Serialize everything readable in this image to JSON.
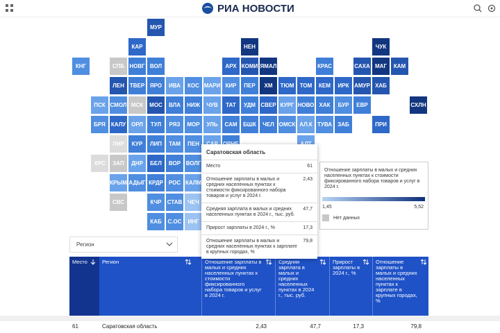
{
  "header": {
    "logo": "РИА НОВОСТИ"
  },
  "tiles": [
    {
      "label": "МУР",
      "color": "#2456b0"
    },
    {
      "label": "КАР",
      "color": "#2e68c8"
    },
    {
      "label": "НЕН",
      "color": "#123680"
    },
    {
      "label": "ЧУК",
      "color": "#123680"
    },
    {
      "label": "КНГ",
      "color": "#4f8ee0"
    },
    {
      "label": "СПБ",
      "color": "#c8c8c8"
    },
    {
      "label": "НОВГ",
      "color": "#3f7fd8"
    },
    {
      "label": "ВОЛ",
      "color": "#3f7fd8"
    },
    {
      "label": "АРХ",
      "color": "#2e68c8"
    },
    {
      "label": "КОМИ",
      "color": "#2456b0"
    },
    {
      "label": "ЯМАЛ",
      "color": "#123680"
    },
    {
      "label": "КРАС",
      "color": "#3f7fd8"
    },
    {
      "label": "САХА",
      "color": "#2456b0"
    },
    {
      "label": "МАГ",
      "color": "#123680"
    },
    {
      "label": "КАМ",
      "color": "#2456b0"
    },
    {
      "label": "ЛЕН",
      "color": "#2456b0"
    },
    {
      "label": "ТВЕР",
      "color": "#3f7fd8"
    },
    {
      "label": "ЯРО",
      "color": "#3f7fd8"
    },
    {
      "label": "ИВА",
      "color": "#6aa3ea"
    },
    {
      "label": "КОС",
      "color": "#4f8ee0"
    },
    {
      "label": "МАРИ",
      "color": "#6aa3ea"
    },
    {
      "label": "КИР",
      "color": "#4f8ee0"
    },
    {
      "label": "ПЕР",
      "color": "#3f7fd8"
    },
    {
      "label": "ХМ",
      "color": "#123680"
    },
    {
      "label": "ТЮМ",
      "color": "#2e68c8"
    },
    {
      "label": "ТОМ",
      "color": "#2e68c8"
    },
    {
      "label": "КЕМ",
      "color": "#2e68c8"
    },
    {
      "label": "ИРК",
      "color": "#2e68c8"
    },
    {
      "label": "АМУР",
      "color": "#2456b0"
    },
    {
      "label": "ХАБ",
      "color": "#2456b0"
    },
    {
      "label": "ПСК",
      "color": "#6aa3ea"
    },
    {
      "label": "СМОЛ",
      "color": "#4f8ee0"
    },
    {
      "label": "МСК",
      "color": "#c8c8c8"
    },
    {
      "label": "МОС",
      "color": "#2456b0"
    },
    {
      "label": "ВЛА",
      "color": "#3f7fd8"
    },
    {
      "label": "НИЖ",
      "color": "#3f7fd8"
    },
    {
      "label": "ЧУВ",
      "color": "#6aa3ea"
    },
    {
      "label": "ТАТ",
      "color": "#2e68c8"
    },
    {
      "label": "УДМ",
      "color": "#3f7fd8"
    },
    {
      "label": "СВЕР",
      "color": "#2e68c8"
    },
    {
      "label": "КУРГ",
      "color": "#6aa3ea"
    },
    {
      "label": "НОВО",
      "color": "#3f7fd8"
    },
    {
      "label": "ХАК",
      "color": "#3f7fd8"
    },
    {
      "label": "БУР",
      "color": "#4f8ee0"
    },
    {
      "label": "ЕВР",
      "color": "#3f7fd8"
    },
    {
      "label": "СХЛН",
      "color": "#123680"
    },
    {
      "label": "БРЯ",
      "color": "#4f8ee0"
    },
    {
      "label": "КАЛУ",
      "color": "#2e68c8"
    },
    {
      "label": "ОРЛ",
      "color": "#6aa3ea"
    },
    {
      "label": "ТУЛ",
      "color": "#3f7fd8"
    },
    {
      "label": "РЯЗ",
      "color": "#4f8ee0"
    },
    {
      "label": "МОР",
      "color": "#4f8ee0"
    },
    {
      "label": "УЛЬ",
      "color": "#6aa3ea"
    },
    {
      "label": "САМ",
      "color": "#3f7fd8"
    },
    {
      "label": "БШК",
      "color": "#3f7fd8"
    },
    {
      "label": "ЧЕЛ",
      "color": "#3f7fd8"
    },
    {
      "label": "ОМСК",
      "color": "#4f8ee0"
    },
    {
      "label": "АЛ.К",
      "color": "#6aa3ea"
    },
    {
      "label": "ТУВА",
      "color": "#4f8ee0"
    },
    {
      "label": "ЗАБ",
      "color": "#3f7fd8"
    },
    {
      "label": "ПРИ",
      "color": "#2e68c8"
    },
    {
      "label": "ЛНР",
      "color": "#dcdcdc"
    },
    {
      "label": "КУР",
      "color": "#3f7fd8"
    },
    {
      "label": "ЛИП",
      "color": "#3f7fd8"
    },
    {
      "label": "ТАМ",
      "color": "#4f8ee0"
    },
    {
      "label": "ПЕН",
      "color": "#4f8ee0"
    },
    {
      "label": "САР",
      "color": "#6aa3ea"
    },
    {
      "label": "ОРНБ",
      "color": "#3f7fd8"
    },
    {
      "label": "АЛТ",
      "color": "#6aa3ea"
    },
    {
      "label": "ХРС",
      "color": "#dcdcdc"
    },
    {
      "label": "ЗАП",
      "color": "#c8c8c8"
    },
    {
      "label": "ДНР",
      "color": "#6aa3ea"
    },
    {
      "label": "БЕЛ",
      "color": "#2e68c8"
    },
    {
      "label": "ВОР",
      "color": "#3f7fd8"
    },
    {
      "label": "ВОЛГ",
      "color": "#4f8ee0"
    },
    {
      "label": "КРЫМ",
      "color": "#6aa3ea"
    },
    {
      "label": "АДЫГ",
      "color": "#4f8ee0"
    },
    {
      "label": "КРДР",
      "color": "#3f7fd8"
    },
    {
      "label": "РОС",
      "color": "#4f8ee0"
    },
    {
      "label": "КАЛМ",
      "color": "#6aa3ea"
    },
    {
      "label": "СВС",
      "color": "#c8c8c8"
    },
    {
      "label": "КЧР",
      "color": "#4f8ee0"
    },
    {
      "label": "СТАВ",
      "color": "#4f8ee0"
    },
    {
      "label": "ЧЕЧ",
      "color": "#9cc3f2"
    },
    {
      "label": "КАБ",
      "color": "#4f8ee0"
    },
    {
      "label": "С.ОС",
      "color": "#4f8ee0"
    },
    {
      "label": "ИНГ",
      "color": "#9cc3f2"
    }
  ],
  "tooltip": {
    "title": "Саратовская область",
    "rows": [
      {
        "label": "Место",
        "value": "61"
      },
      {
        "label": "Отношение зарплаты в малых и средних населенных пунктах к стоимости фиксированного набора товаров и услуг в 2024 г.",
        "value": "2,43"
      },
      {
        "label": "Средняя зарплата в малых и средних населенных пунктах в 2024 г., тыс. руб.",
        "value": "47,7"
      },
      {
        "label": "Прирост зарплаты в 2024 г., %",
        "value": "17,3"
      },
      {
        "label": "Отношение зарплаты в малых и средних населенных пунктах к зарплате в крупных городах, %",
        "value": "79,8"
      }
    ]
  },
  "legend": {
    "title": "Отношение зарплаты в малых и средних населенных пунктах к стоимости фиксированного набора товаров и услуг в 2024 г.",
    "min": "1,45",
    "max": "5,52",
    "no_data": "Нет данных"
  },
  "dropdown": {
    "label": "Регион"
  },
  "table": {
    "headers": [
      "Место",
      "Регион",
      "Отношение зарплаты в малых и средних населенных пунктах к стоимости фиксированного набора товаров и услуг в 2024 г.",
      "Средняя зарплата в малых и средних населенных пунктах в 2024 г., тыс. руб.",
      "Прирост зарплаты в 2024 г., %",
      "Отношение зарплаты в малых и средних населенных пунктах к зарплате в крупных городах, %"
    ],
    "rows": [
      [
        "61",
        "Саратовская область",
        "2,43",
        "47,7",
        "17,3",
        "79,8"
      ]
    ]
  }
}
